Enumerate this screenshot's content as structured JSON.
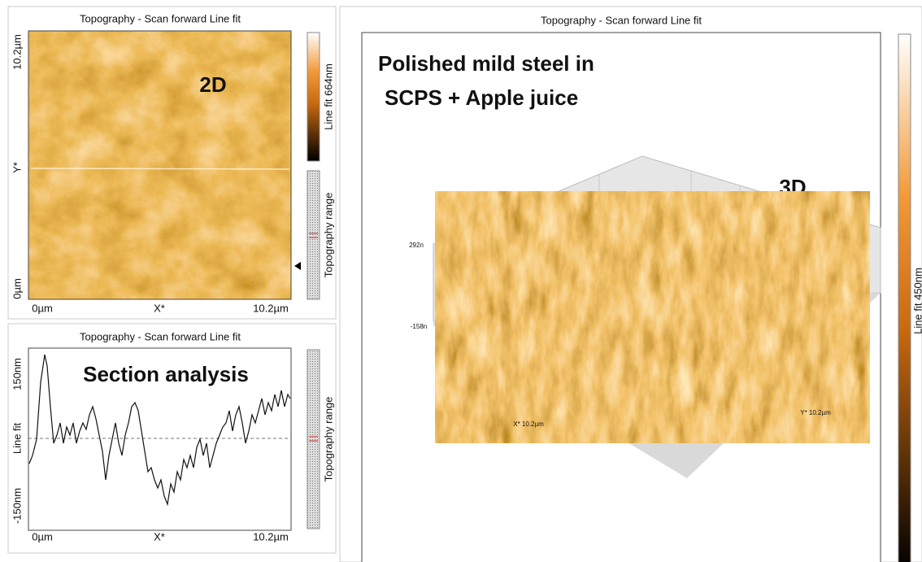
{
  "panel_2d": {
    "title": "Topography - Scan forward   Line fit",
    "y_top": "10.2µm",
    "y_axis": "Y*",
    "y_bottom": "0µm",
    "x_left": "0µm",
    "x_axis": "X*",
    "x_right": "10.2µm",
    "overlay": "2D",
    "colorbar": "Line fit 664nm",
    "range": "Topography range"
  },
  "panel_section": {
    "title": "Topography - Scan forward   Line fit",
    "y_top": "150nm",
    "y_axis": "Line fit",
    "y_bottom": "-150nm",
    "overlay": "Section analysis",
    "x_left": "0µm",
    "x_axis": "X*",
    "x_right": "10.2µm",
    "range": "Topography range"
  },
  "panel_3d": {
    "title": "Topography - Scan forward   Line fit",
    "heading_line1": "Polished mild steel in",
    "heading_line2": "SCPS + Apple juice",
    "overlay": "3D",
    "z_top": "292n",
    "z_bottom": "-158n",
    "x_axis": "X* 10.2µm",
    "y_axis": "Y* 10.2µm",
    "colorbar": "Line fit 450nm"
  }
}
